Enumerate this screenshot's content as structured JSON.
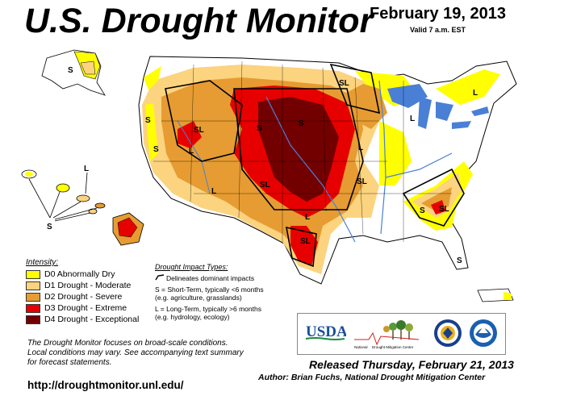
{
  "header": {
    "title": "U.S. Drought Monitor",
    "date": "February 19, 2013",
    "valid": "Valid 7 a.m. EST"
  },
  "legend": {
    "title": "Intensity:",
    "items": [
      {
        "label": "D0 Abnormally Dry",
        "color": "#ffff00"
      },
      {
        "label": "D1 Drought - Moderate",
        "color": "#fcd37f"
      },
      {
        "label": "D2 Drought - Severe",
        "color": "#e69c32"
      },
      {
        "label": "D3 Drought - Extreme",
        "color": "#e60000"
      },
      {
        "label": "D4 Drought - Exceptional",
        "color": "#730000"
      }
    ]
  },
  "impact": {
    "title": "Drought Impact Types:",
    "delineates": "Delineates dominant impacts",
    "short_term_1": "S = Short-Term, typically <6 months",
    "short_term_2": "(e.g. agriculture, grasslands)",
    "long_term_1": "L = Long-Term, typically >6 months",
    "long_term_2": "(e.g. hydrology, ecology)"
  },
  "note": {
    "line1": "The Drought Monitor focuses on broad-scale conditions.",
    "line2": "Local conditions may vary. See accompanying text summary",
    "line3": "for forecast statements."
  },
  "url": "http://droughtmonitor.unl.edu/",
  "released": "Released Thursday, February 21, 2013",
  "author": "Author: Brian Fuchs, National Drought Mitigation Center",
  "logos": {
    "usda": "USDA",
    "ndmc_line1": "National",
    "ndmc_line2": "Drought Mitigation Center"
  },
  "map_labels": {
    "S": "S",
    "L": "L",
    "SL": "SL"
  },
  "colors": {
    "water": "#4a7fd6",
    "land": "#ffffff",
    "outline": "#000000"
  }
}
